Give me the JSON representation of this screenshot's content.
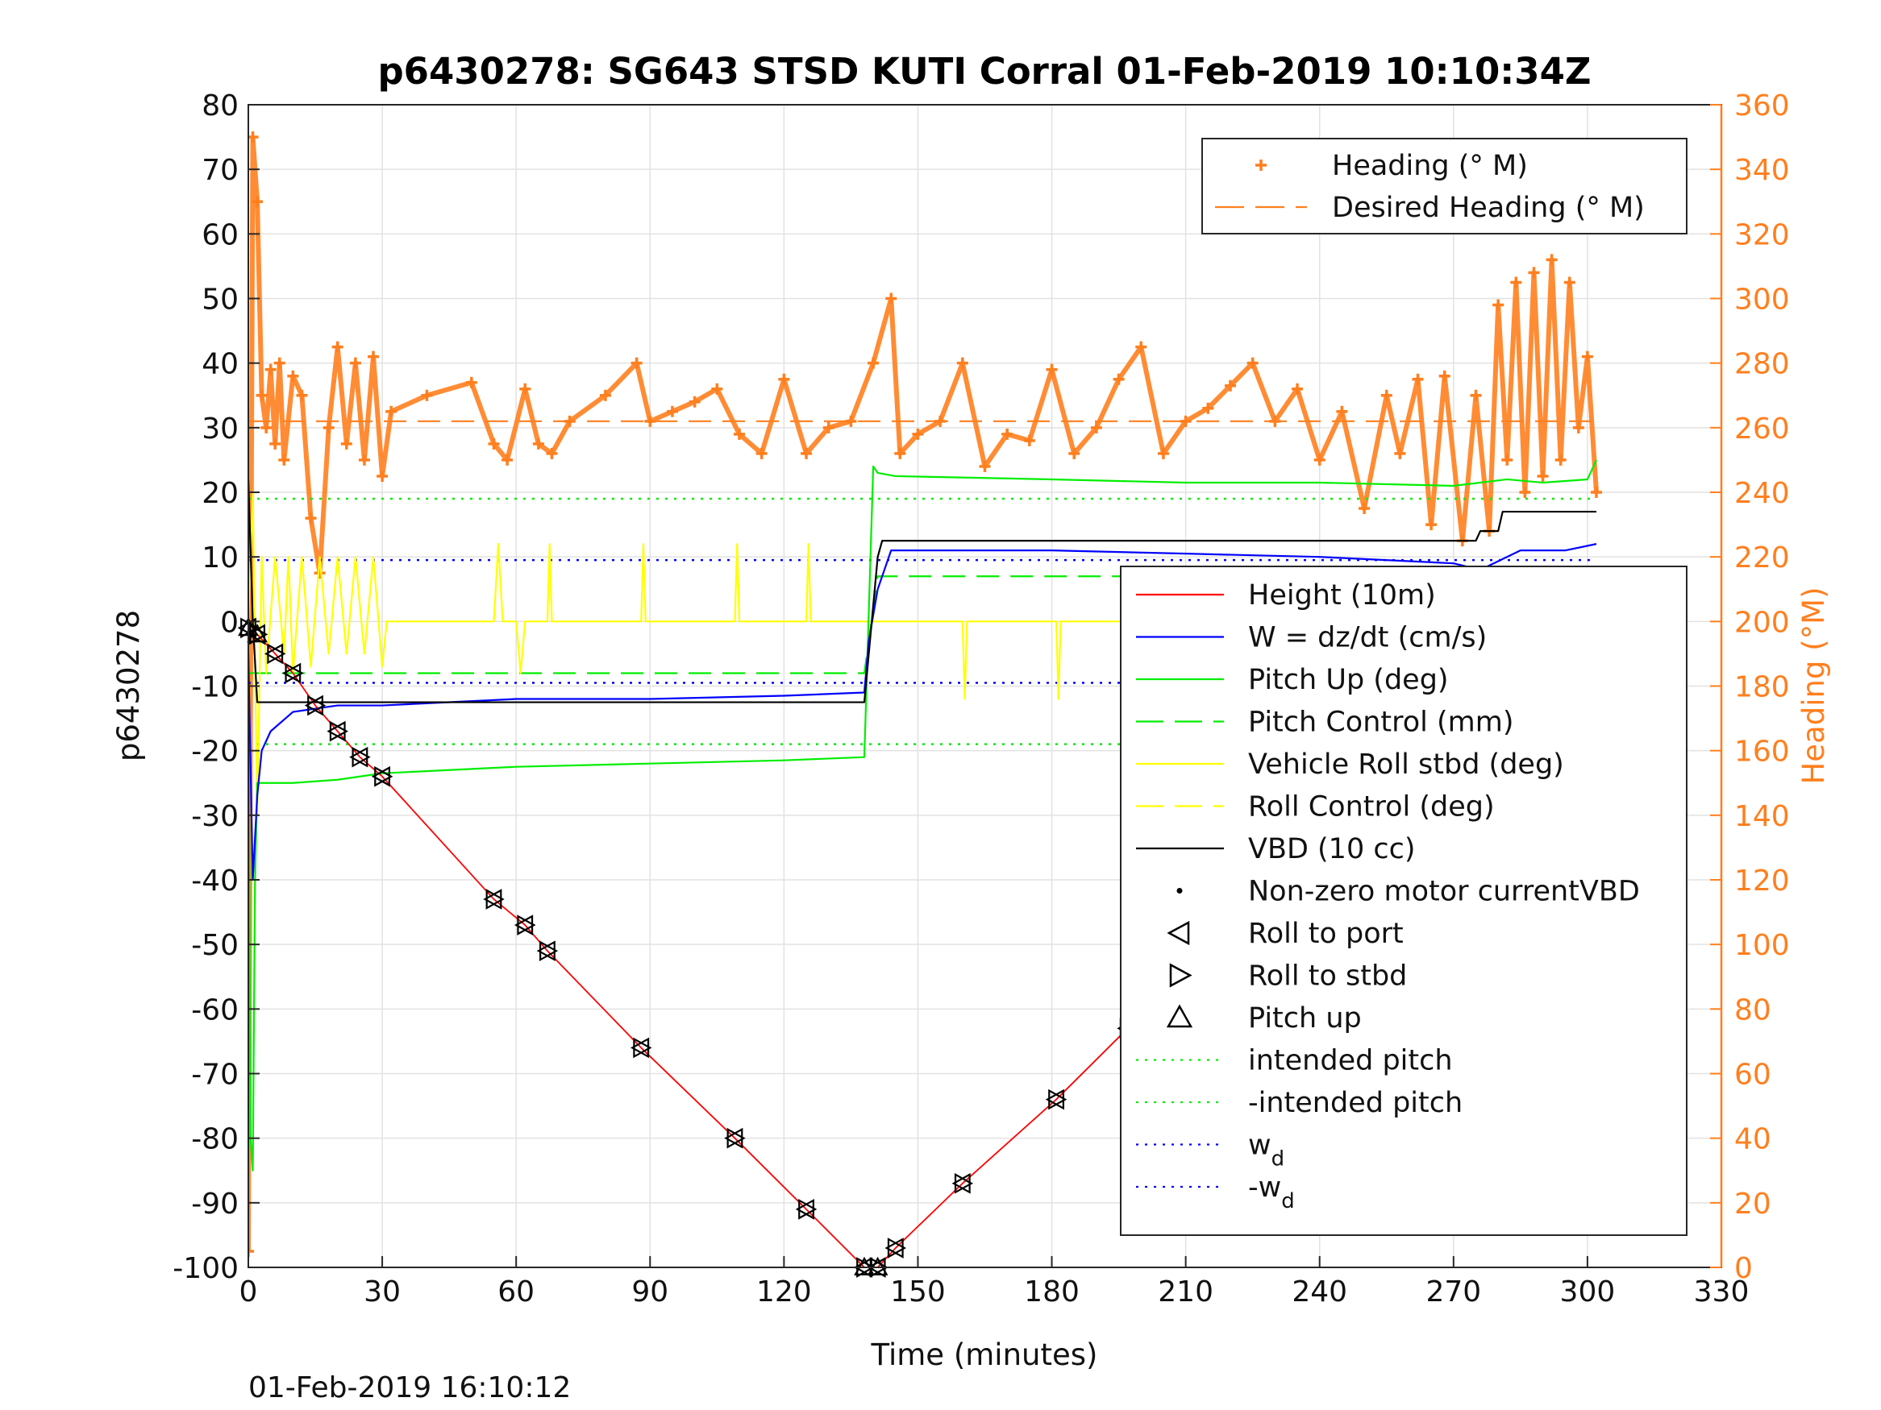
{
  "chart_data": {
    "type": "line",
    "title": "p6430278: SG643 STSD KUTI Corral 01-Feb-2019 10:10:34Z",
    "xlabel": "Time (minutes)",
    "ylabel": "p6430278",
    "ylabel_right": "Heading (°M)",
    "xlim": [
      0,
      330
    ],
    "ylim": [
      -100,
      80
    ],
    "ylim_right": [
      0,
      360
    ],
    "x_ticks": [
      "0",
      "30",
      "60",
      "90",
      "120",
      "150",
      "180",
      "210",
      "240",
      "270",
      "300",
      "330"
    ],
    "y_ticks": [
      "80",
      "70",
      "60",
      "50",
      "40",
      "30",
      "20",
      "10",
      "0",
      "-10",
      "-20",
      "-30",
      "-40",
      "-50",
      "-60",
      "-70",
      "-80",
      "-90",
      "-100"
    ],
    "y_ticks_right": [
      "360",
      "340",
      "320",
      "300",
      "280",
      "260",
      "240",
      "220",
      "200",
      "180",
      "160",
      "140",
      "120",
      "100",
      "80",
      "60",
      "40",
      "20",
      "0"
    ],
    "grid": true,
    "footer": "01-Feb-2019 16:10:12",
    "colors": {
      "height": "#ff0000",
      "w": "#0000ff",
      "pitch": "#00ee00",
      "roll": "#ffff00",
      "vbd": "#000000",
      "heading": "#ff7f1e"
    },
    "legend_heading": [
      {
        "label": "Heading (° M)",
        "style": "plus-markers"
      },
      {
        "label": "Desired Heading (° M)",
        "style": "dashed"
      }
    ],
    "legend_main": [
      {
        "label": "Height (10m)",
        "style": "solid",
        "color": "#ff0000"
      },
      {
        "label": "W = dz/dt (cm/s)",
        "style": "solid",
        "color": "#0000ff"
      },
      {
        "label": "Pitch Up (deg)",
        "style": "solid",
        "color": "#00ee00"
      },
      {
        "label": "Pitch Control (mm)",
        "style": "dashed",
        "color": "#00ee00"
      },
      {
        "label": "Vehicle Roll stbd (deg)",
        "style": "solid",
        "color": "#ffff00"
      },
      {
        "label": "Roll Control (deg)",
        "style": "dashed",
        "color": "#ffff00"
      },
      {
        "label": "VBD (10 cc)",
        "style": "solid",
        "color": "#000000"
      },
      {
        "label": "Non-zero motor currentVBD",
        "style": "dot",
        "color": "#000000"
      },
      {
        "label": "Roll to port",
        "style": "tri-left",
        "color": "#000000"
      },
      {
        "label": "Roll to stbd",
        "style": "tri-right",
        "color": "#000000"
      },
      {
        "label": "Pitch up",
        "style": "tri-up",
        "color": "#000000"
      },
      {
        "label": "intended pitch",
        "style": "dotted",
        "color": "#00ee00"
      },
      {
        "label": "-intended pitch",
        "style": "dotted",
        "color": "#00ee00"
      },
      {
        "label": "w",
        "sub": "d",
        "style": "dotted",
        "color": "#0000ff"
      },
      {
        "label": "-w",
        "sub": "d",
        "style": "dotted",
        "color": "#0000ff"
      }
    ],
    "series": [
      {
        "name": "Height (10m)",
        "axis": "left",
        "color": "#ff0000",
        "x": [
          0,
          2,
          6,
          10,
          15,
          20,
          25,
          30,
          55,
          62,
          67,
          88,
          109,
          125,
          138,
          141,
          145,
          160,
          181,
          197,
          224,
          230,
          240,
          252,
          260,
          268,
          278,
          290,
          302
        ],
        "y": [
          -1,
          -2,
          -5,
          -8,
          -13,
          -17,
          -21,
          -24,
          -43,
          -47,
          -51,
          -66,
          -80,
          -91,
          -100,
          -100,
          -97,
          -87,
          -74,
          -63,
          -47,
          -43,
          -37,
          -30,
          -25,
          -20,
          -14,
          -7,
          0
        ]
      },
      {
        "name": "W = dz/dt (cm/s)",
        "axis": "left",
        "color": "#0000ff",
        "x": [
          0,
          1,
          2,
          3,
          5,
          10,
          20,
          30,
          60,
          90,
          120,
          138,
          139,
          141,
          144,
          150,
          180,
          210,
          240,
          270,
          276,
          285,
          295,
          302
        ],
        "y": [
          -5,
          -40,
          -27,
          -20,
          -17,
          -14,
          -13,
          -13,
          -12,
          -12,
          -11.5,
          -11,
          -3,
          5,
          11,
          11,
          11,
          10.5,
          10,
          9,
          8,
          11,
          11,
          12
        ]
      },
      {
        "name": "Pitch Up (deg)",
        "axis": "left",
        "color": "#00ee00",
        "x": [
          0,
          0.5,
          1,
          1.5,
          2,
          5,
          10,
          20,
          30,
          60,
          90,
          120,
          138,
          140,
          141,
          145,
          180,
          210,
          240,
          270,
          282,
          290,
          300,
          302
        ],
        "y": [
          0,
          -80,
          -85,
          -40,
          -25,
          -25,
          -25,
          -24.5,
          -23.5,
          -22.5,
          -22,
          -21.5,
          -21,
          24,
          23,
          22.5,
          22,
          21.5,
          21.5,
          21,
          22,
          21.5,
          22,
          25
        ]
      },
      {
        "name": "Pitch Control (mm)",
        "axis": "left",
        "color": "#00ee00",
        "dash": true,
        "x": [
          0,
          138,
          141,
          302
        ],
        "y": [
          -8,
          -8,
          7,
          7
        ]
      },
      {
        "name": "Vehicle Roll stbd (deg)",
        "axis": "left",
        "color": "#ffff00",
        "x": [
          0,
          1,
          2,
          3,
          4,
          6,
          8,
          9,
          10,
          12,
          14,
          16,
          18,
          20,
          22,
          24,
          26,
          28,
          30,
          31,
          55,
          56,
          57,
          60,
          61,
          62,
          67,
          67.5,
          68,
          88,
          88.5,
          89,
          109,
          109.5,
          110,
          125,
          125.5,
          126,
          138,
          140,
          145,
          160,
          160.5,
          161,
          181,
          181.5,
          182,
          197,
          197.5,
          198,
          224,
          224.5,
          225,
          240,
          240.5,
          241,
          260,
          260.5,
          261,
          278,
          278.5,
          279,
          290,
          290.5,
          291,
          302
        ],
        "y": [
          0,
          20,
          -30,
          10,
          -8,
          10,
          -5,
          10,
          -8,
          10,
          -7,
          10,
          -5,
          10,
          -5,
          10,
          -5,
          10,
          -7,
          0,
          0,
          12,
          0,
          0,
          -8,
          0,
          0,
          12,
          0,
          0,
          12,
          0,
          0,
          12,
          0,
          0,
          12,
          0,
          0,
          0,
          0,
          0,
          -12,
          0,
          0,
          -12,
          0,
          0,
          -10,
          0,
          0,
          -10,
          0,
          0,
          -10,
          0,
          0,
          -12,
          0,
          0,
          -12,
          0,
          0,
          -12,
          0,
          0
        ]
      },
      {
        "name": "VBD (10 cc)",
        "axis": "left",
        "color": "#000000",
        "x": [
          0,
          1,
          2,
          138,
          141,
          142,
          145,
          275,
          276,
          280,
          281,
          302
        ],
        "y": [
          22,
          0,
          -12.5,
          -12.5,
          10,
          12.5,
          12.5,
          12.5,
          14,
          14,
          17,
          17
        ]
      },
      {
        "name": "intended pitch",
        "axis": "left",
        "color": "#00ee00",
        "dotted": true,
        "x": [
          0,
          302
        ],
        "y": [
          19,
          19
        ]
      },
      {
        "name": "-intended pitch",
        "axis": "left",
        "color": "#00ee00",
        "dotted": true,
        "x": [
          0,
          302
        ],
        "y": [
          -19,
          -19
        ]
      },
      {
        "name": "w_d",
        "axis": "left",
        "color": "#0000ff",
        "dotted": true,
        "x": [
          0,
          302
        ],
        "y": [
          9.5,
          9.5
        ]
      },
      {
        "name": "-w_d",
        "axis": "left",
        "color": "#0000ff",
        "dotted": true,
        "x": [
          0,
          302
        ],
        "y": [
          -9.5,
          -9.5
        ]
      },
      {
        "name": "Desired Heading (° M)",
        "axis": "right",
        "color": "#ff7f1e",
        "dash": true,
        "x": [
          0,
          302
        ],
        "y": [
          262,
          262
        ]
      },
      {
        "name": "Heading (° M)",
        "axis": "right",
        "color": "#ff7f1e",
        "markers": "plus",
        "x": [
          0,
          1,
          2,
          3,
          4,
          5,
          6,
          7,
          8,
          10,
          12,
          14,
          16,
          18,
          20,
          22,
          24,
          26,
          28,
          30,
          32,
          40,
          50,
          55,
          58,
          62,
          65,
          68,
          72,
          80,
          87,
          90,
          95,
          100,
          105,
          110,
          115,
          120,
          125,
          130,
          135,
          140,
          144,
          146,
          150,
          155,
          160,
          165,
          170,
          175,
          180,
          185,
          190,
          195,
          200,
          205,
          210,
          215,
          220,
          225,
          230,
          235,
          240,
          245,
          250,
          255,
          258,
          262,
          265,
          268,
          272,
          275,
          278,
          280,
          282,
          284,
          286,
          288,
          290,
          292,
          294,
          296,
          298,
          300,
          302
        ],
        "y": [
          5,
          350,
          330,
          270,
          260,
          278,
          255,
          280,
          250,
          276,
          270,
          232,
          215,
          260,
          285,
          255,
          280,
          250,
          282,
          245,
          265,
          270,
          274,
          255,
          250,
          272,
          255,
          252,
          262,
          270,
          280,
          262,
          265,
          268,
          272,
          258,
          252,
          275,
          252,
          260,
          262,
          280,
          300,
          252,
          258,
          262,
          280,
          248,
          258,
          256,
          278,
          252,
          260,
          275,
          285,
          252,
          262,
          266,
          273,
          280,
          262,
          272,
          250,
          265,
          235,
          270,
          252,
          275,
          230,
          276,
          225,
          270,
          228,
          298,
          250,
          305,
          240,
          308,
          245,
          312,
          250,
          305,
          260,
          282,
          240
        ]
      }
    ]
  }
}
